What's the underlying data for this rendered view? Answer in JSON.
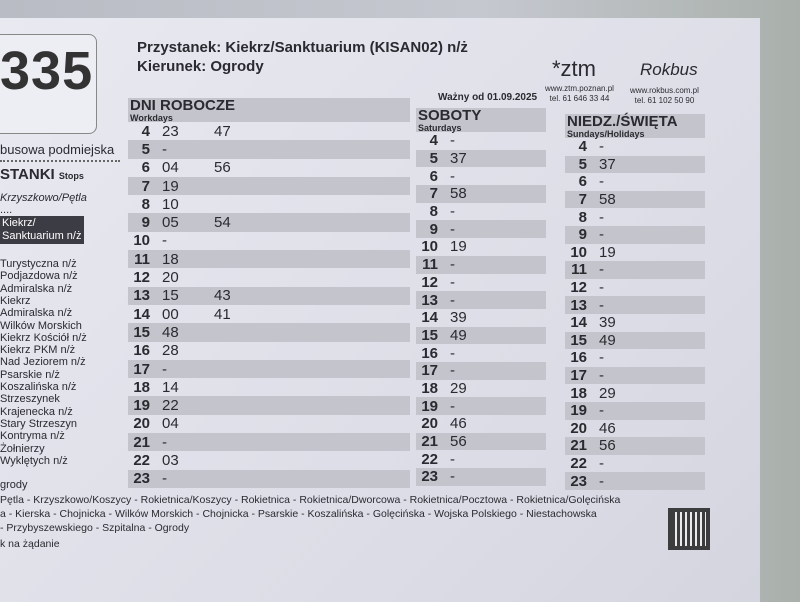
{
  "line": "335",
  "header": {
    "stop": "Przystanek: Kiekrz/Sanktuarium (KISAN02) n/ż",
    "direction": "Kierunek: Ogrody",
    "valid": "Ważny od 01.09.2025"
  },
  "left": {
    "category": "busowa podmiejska",
    "stops_title": "STANKI",
    "stops_sub": "Stops",
    "first_stop": "Krzyszkowo/Pętla",
    "ellipsis": "....",
    "current_stop": [
      "Kiekrz/",
      "Sanktuarium n/ż"
    ],
    "stops": [
      "Turystyczna n/ż",
      "Podjazdowa n/ż",
      "Admiralska n/ż",
      "Kiekrz",
      "Admiralska n/ż",
      "Wilków Morskich",
      "Kiekrz Kościół n/ż",
      "Kiekrz PKM n/ż",
      "Nad Jeziorem n/ż",
      "Psarskie n/ż",
      "Koszalińska n/ż",
      "Strzeszynek",
      "Krajenecka n/ż",
      "Stary Strzeszyn",
      "Kontryma n/ż",
      "Żołnierzy",
      "Wyklętych n/ż",
      "",
      "grody"
    ]
  },
  "logos": {
    "ztm": "*ztm",
    "ztm_url": "www.ztm.poznan.pl",
    "ztm_tel": "tel. 61 646 33 44",
    "rokbus": "Rokbus",
    "rokbus_url": "www.rokbus.com.pl",
    "rokbus_tel": "tel. 61 102 50 90"
  },
  "workdays": {
    "title": "DNI ROBOCZE",
    "sub": "Workdays",
    "rows": [
      [
        "4",
        "23",
        "47"
      ],
      [
        "5",
        "-",
        ""
      ],
      [
        "6",
        "04",
        "56"
      ],
      [
        "7",
        "19",
        ""
      ],
      [
        "8",
        "10",
        ""
      ],
      [
        "9",
        "05",
        "54"
      ],
      [
        "10",
        "-",
        ""
      ],
      [
        "11",
        "18",
        ""
      ],
      [
        "12",
        "20",
        ""
      ],
      [
        "13",
        "15",
        "43"
      ],
      [
        "14",
        "00",
        "41"
      ],
      [
        "15",
        "48",
        ""
      ],
      [
        "16",
        "28",
        ""
      ],
      [
        "17",
        "-",
        ""
      ],
      [
        "18",
        "14",
        ""
      ],
      [
        "19",
        "22",
        ""
      ],
      [
        "20",
        "04",
        ""
      ],
      [
        "21",
        "-",
        ""
      ],
      [
        "22",
        "03",
        ""
      ],
      [
        "23",
        "-",
        ""
      ]
    ]
  },
  "saturdays": {
    "title": "SOBOTY",
    "sub": "Saturdays",
    "rows": [
      [
        "4",
        "-"
      ],
      [
        "5",
        "37"
      ],
      [
        "6",
        "-"
      ],
      [
        "7",
        "58"
      ],
      [
        "8",
        "-"
      ],
      [
        "9",
        "-"
      ],
      [
        "10",
        "19"
      ],
      [
        "11",
        "-"
      ],
      [
        "12",
        "-"
      ],
      [
        "13",
        "-"
      ],
      [
        "14",
        "39"
      ],
      [
        "15",
        "49"
      ],
      [
        "16",
        "-"
      ],
      [
        "17",
        "-"
      ],
      [
        "18",
        "29"
      ],
      [
        "19",
        "-"
      ],
      [
        "20",
        "46"
      ],
      [
        "21",
        "56"
      ],
      [
        "22",
        "-"
      ],
      [
        "23",
        "-"
      ]
    ]
  },
  "sundays": {
    "title": "NIEDZ./ŚWIĘTA",
    "sub": "Sundays/Holidays",
    "rows": [
      [
        "4",
        "-"
      ],
      [
        "5",
        "37"
      ],
      [
        "6",
        "-"
      ],
      [
        "7",
        "58"
      ],
      [
        "8",
        "-"
      ],
      [
        "9",
        "-"
      ],
      [
        "10",
        "19"
      ],
      [
        "11",
        "-"
      ],
      [
        "12",
        "-"
      ],
      [
        "13",
        "-"
      ],
      [
        "14",
        "39"
      ],
      [
        "15",
        "49"
      ],
      [
        "16",
        "-"
      ],
      [
        "17",
        "-"
      ],
      [
        "18",
        "29"
      ],
      [
        "19",
        "-"
      ],
      [
        "20",
        "46"
      ],
      [
        "21",
        "56"
      ],
      [
        "22",
        "-"
      ],
      [
        "23",
        "-"
      ]
    ]
  },
  "route": [
    "Pętla - Krzyszkowo/Koszycy - Rokietnica/Koszycy - Rokietnica - Rokietnica/Dworcowa - Rokietnica/Pocztowa - Rokietnica/Golęcińska",
    "a - Kierska - Chojnicka - Wilków Morskich - Chojnicka - Psarskie - Koszalińska - Golęcińska - Wojska Polskiego - Niestachowska",
    "- Przybyszewskiego - Szpitalna - Ogrody",
    "k na żądanie"
  ]
}
